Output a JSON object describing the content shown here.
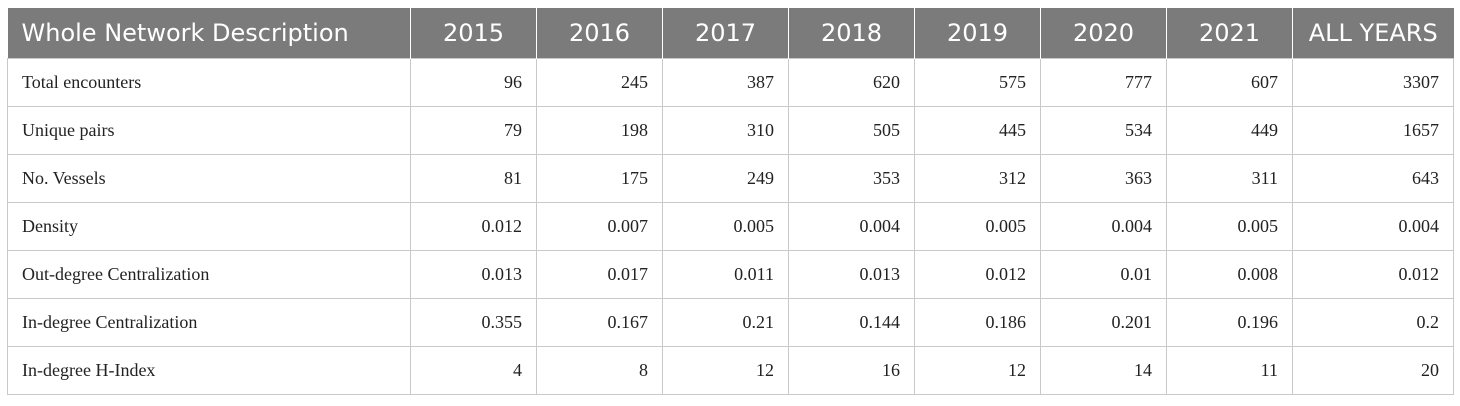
{
  "table": {
    "headers": [
      "Whole Network Description",
      "2015",
      "2016",
      "2017",
      "2018",
      "2019",
      "2020",
      "2021",
      "ALL YEARS"
    ],
    "rows": [
      [
        "Total encounters",
        "96",
        "245",
        "387",
        "620",
        "575",
        "777",
        "607",
        "3307"
      ],
      [
        "Unique pairs",
        "79",
        "198",
        "310",
        "505",
        "445",
        "534",
        "449",
        "1657"
      ],
      [
        "No. Vessels",
        "81",
        "175",
        "249",
        "353",
        "312",
        "363",
        "311",
        "643"
      ],
      [
        "Density",
        "0.012",
        "0.007",
        "0.005",
        "0.004",
        "0.005",
        "0.004",
        "0.005",
        "0.004"
      ],
      [
        "Out-degree Centralization",
        "0.013",
        "0.017",
        "0.011",
        "0.013",
        "0.012",
        "0.01",
        "0.008",
        "0.012"
      ],
      [
        "In-degree Centralization",
        "0.355",
        "0.167",
        "0.21",
        "0.144",
        "0.186",
        "0.201",
        "0.196",
        "0.2"
      ],
      [
        "In-degree H-Index",
        "4",
        "8",
        "12",
        "16",
        "12",
        "14",
        "11",
        "20"
      ]
    ]
  }
}
